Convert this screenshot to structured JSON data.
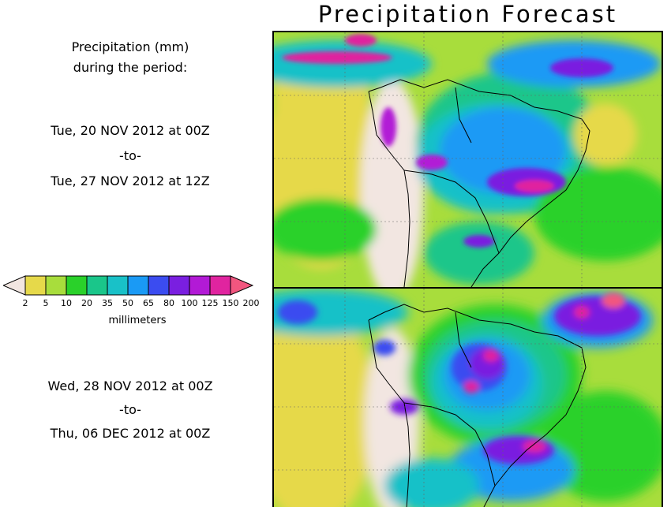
{
  "title": "Precipitation Forecast",
  "intro": {
    "line1": "Precipitation (mm)",
    "line2": "during the period:"
  },
  "periods": [
    {
      "start": "Tue, 20 NOV 2012 at 00Z",
      "sep": "-to-",
      "end": "Tue, 27 NOV 2012 at 12Z"
    },
    {
      "start": "Wed, 28 NOV 2012 at 00Z",
      "sep": "-to-",
      "end": "Thu, 06 DEC 2012 at 00Z"
    }
  ],
  "legend": {
    "unit": "millimeters",
    "ticks": [
      "2",
      "5",
      "10",
      "20",
      "35",
      "50",
      "65",
      "80",
      "100",
      "125",
      "150",
      "200"
    ],
    "colors": [
      "#f2e6e1",
      "#e6d94a",
      "#a8dd3c",
      "#2ad12a",
      "#1ac68a",
      "#19c1c8",
      "#1a9af5",
      "#3b4cf0",
      "#7a1fe0",
      "#b21ad6",
      "#e0249f",
      "#f2567f"
    ]
  }
}
